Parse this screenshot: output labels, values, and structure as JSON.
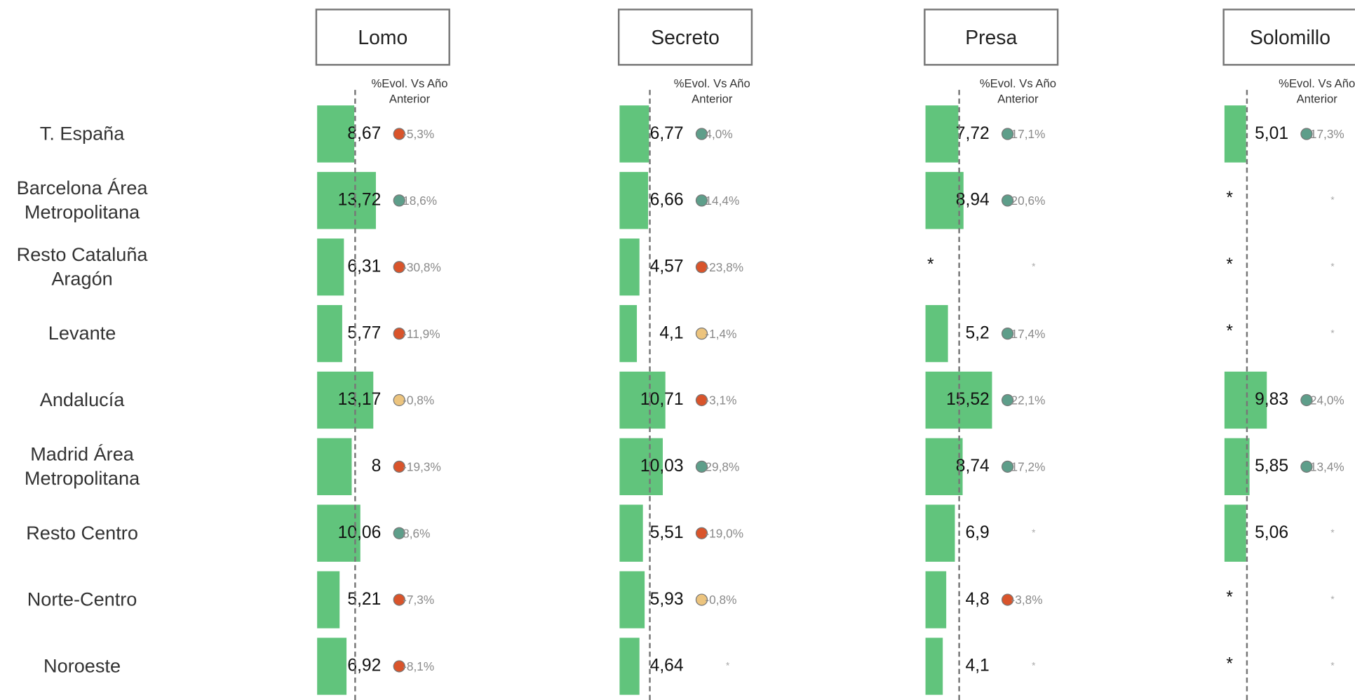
{
  "rows": [
    "T. España",
    "Barcelona Área Metropolitana",
    "Resto Cataluña Aragón",
    "Levante",
    "Andalucía",
    "Madrid Área Metropolitana",
    "Resto Centro",
    "Norte-Centro",
    "Noroeste"
  ],
  "columns": [
    {
      "title": "Lomo",
      "subtitle": "%Evol. Vs Año Anterior",
      "values": [
        8.67,
        13.72,
        6.31,
        5.77,
        13.17,
        8,
        10.06,
        5.21,
        6.92
      ],
      "value_labels": [
        "8,67",
        "13,72",
        "6,31",
        "5,77",
        "13,17",
        "8",
        "10,06",
        "5,21",
        "6,92"
      ],
      "evolution": [
        -5.3,
        18.6,
        -30.8,
        -11.9,
        -0.8,
        -19.3,
        8.6,
        -7.3,
        -8.1
      ],
      "evolution_labels": [
        "-5,3%",
        "18,6%",
        "-30,8%",
        "-11,9%",
        "-0,8%",
        "-19,3%",
        "8,6%",
        "-7,3%",
        "-8,1%"
      ],
      "evolution_colors": [
        "#d9542b",
        "#5e9e8a",
        "#d9542b",
        "#d9542b",
        "#ecc47e",
        "#d9542b",
        "#5e9e8a",
        "#d9542b",
        "#d9542b"
      ]
    },
    {
      "title": "Secreto",
      "subtitle": "%Evol. Vs Año Anterior",
      "values": [
        6.77,
        6.66,
        4.57,
        4.1,
        10.71,
        10.03,
        5.51,
        5.93,
        4.64
      ],
      "value_labels": [
        "6,77",
        "6,66",
        "4,57",
        "4,1",
        "10,71",
        "10,03",
        "5,51",
        "5,93",
        "4,64"
      ],
      "evolution": [
        4.0,
        14.4,
        -23.8,
        -1.4,
        -3.1,
        29.8,
        -19.0,
        -0.8,
        null
      ],
      "evolution_labels": [
        "4,0%",
        "14,4%",
        "-23,8%",
        "-1,4%",
        "-3,1%",
        "29,8%",
        "-19,0%",
        "-0,8%",
        "*"
      ],
      "evolution_colors": [
        "#5e9e8a",
        "#5e9e8a",
        "#d9542b",
        "#ecc47e",
        "#d9542b",
        "#5e9e8a",
        "#d9542b",
        "#ecc47e",
        null
      ]
    },
    {
      "title": "Presa",
      "subtitle": "%Evol. Vs Año Anterior",
      "values": [
        7.72,
        8.94,
        null,
        5.2,
        15.52,
        8.74,
        6.9,
        4.8,
        4.1
      ],
      "value_labels": [
        "7,72",
        "8,94",
        "*",
        "5,2",
        "15,52",
        "8,74",
        "6,9",
        "4,8",
        "4,1"
      ],
      "evolution": [
        17.1,
        20.6,
        null,
        17.4,
        22.1,
        17.2,
        null,
        -3.8,
        null
      ],
      "evolution_labels": [
        "17,1%",
        "20,6%",
        "*",
        "17,4%",
        "22,1%",
        "17,2%",
        "*",
        "-3,8%",
        "*"
      ],
      "evolution_colors": [
        "#5e9e8a",
        "#5e9e8a",
        null,
        "#5e9e8a",
        "#5e9e8a",
        "#5e9e8a",
        null,
        "#d9542b",
        null
      ]
    },
    {
      "title": "Solomillo",
      "subtitle": "%Evol. Vs Año Anterior",
      "values": [
        5.01,
        null,
        null,
        null,
        9.83,
        5.85,
        5.06,
        null,
        null
      ],
      "value_labels": [
        "5,01",
        "*",
        "*",
        "*",
        "9,83",
        "5,85",
        "5,06",
        "*",
        "*"
      ],
      "evolution": [
        17.3,
        null,
        null,
        null,
        24.0,
        13.4,
        null,
        null,
        null
      ],
      "evolution_labels": [
        "17,3%",
        "*",
        "*",
        "*",
        "24,0%",
        "13,4%",
        "*",
        "*",
        "*"
      ],
      "evolution_colors": [
        "#5e9e8a",
        null,
        null,
        null,
        "#5e9e8a",
        "#5e9e8a",
        null,
        null,
        null
      ]
    }
  ]
}
